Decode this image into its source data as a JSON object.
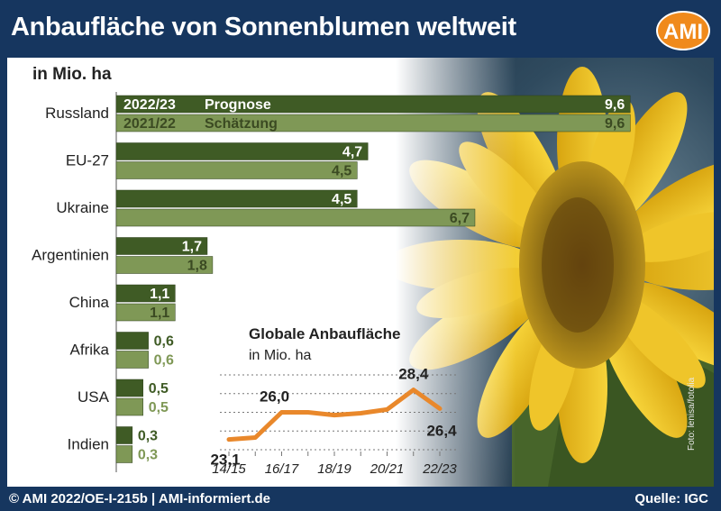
{
  "header": {
    "title": "Anbaufläche von Sonnenblumen weltweit",
    "logo_text": "AMI",
    "brand_color": "#f08a1c"
  },
  "footer": {
    "left": "© AMI 2022/OE-I-215b | AMI-informiert.de",
    "right": "Quelle: IGC",
    "photo_credit": "Foto: lenisa/fotolia"
  },
  "colors": {
    "background": "#16365f",
    "bar_dark": "#3f5b25",
    "bar_light": "#7f9856",
    "line": "#e9882b"
  },
  "chart_data": [
    {
      "type": "bar",
      "orientation": "horizontal",
      "unit_label": "in Mio. ha",
      "categories": [
        "Russland",
        "EU-27",
        "Ukraine",
        "Argentinien",
        "China",
        "Afrika",
        "USA",
        "Indien"
      ],
      "series": [
        {
          "name": "2022/23",
          "note": "Prognose",
          "color": "#3f5b25",
          "values": [
            9.6,
            4.7,
            4.5,
            1.7,
            1.1,
            0.6,
            0.5,
            0.3
          ],
          "labels": [
            "9,6",
            "4,7",
            "4,5",
            "1,7",
            "1,1",
            "0,6",
            "0,5",
            "0,3"
          ]
        },
        {
          "name": "2021/22",
          "note": "Schätzung",
          "color": "#7f9856",
          "values": [
            9.6,
            4.5,
            6.7,
            1.8,
            1.1,
            0.6,
            0.5,
            0.3
          ],
          "labels": [
            "9,6",
            "4,5",
            "6,7",
            "1,8",
            "1,1",
            "0,6",
            "0,5",
            "0,3"
          ]
        }
      ],
      "legend_placement": "inside first bars",
      "grid": false
    },
    {
      "type": "line",
      "title": "Globale Anbaufläche",
      "subtitle": "in Mio. ha",
      "x": [
        "14/15",
        "15/16",
        "16/17",
        "17/18",
        "18/19",
        "19/20",
        "20/21",
        "21/22",
        "22/23"
      ],
      "x_tick_labels": [
        "14/15",
        "16/17",
        "18/19",
        "20/21",
        "22/23"
      ],
      "values": [
        23.1,
        23.3,
        26.0,
        26.0,
        25.7,
        25.9,
        26.3,
        28.4,
        26.4
      ],
      "data_labels": [
        {
          "x": "14/15",
          "text": "23,1"
        },
        {
          "x": "16/17",
          "text": "26,0"
        },
        {
          "x": "21/22",
          "text": "28,4"
        },
        {
          "x": "22/23",
          "text": "26,4"
        }
      ],
      "ylim": [
        22,
        30
      ],
      "grid": true,
      "color": "#e9882b"
    }
  ]
}
